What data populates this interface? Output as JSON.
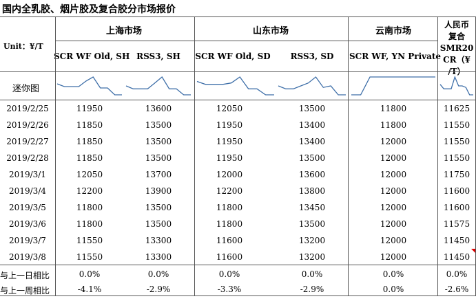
{
  "title": "国内全乳胶、烟片胶及复合胶分市场报价",
  "unit_label": "Unit：¥/T",
  "groups": {
    "shanghai": "上海市场",
    "shandong": "山东市场",
    "yunnan": "云南市场",
    "rmb_line1": "人民币",
    "rmb_line2": "复合"
  },
  "columns": {
    "sh_scr": "SCR WF Old, SH",
    "sh_rss": "RSS3, SH",
    "sd_scr": "SCR WF Old, SD",
    "sd_rss": "RSS3, SD",
    "yn_scr": "SCR WF, YN Private",
    "smr_line1": "SMR20",
    "smr_line2": "CR（¥",
    "smr_line3": "/T）"
  },
  "mini_chart_label": "迷你图",
  "rows": [
    {
      "date": "2019/2/25",
      "sh_scr": "11950",
      "sh_rss": "13600",
      "sd_scr": "12050",
      "sd_rss": "13500",
      "yn_scr": "11800",
      "smr": "11625"
    },
    {
      "date": "2019/2/26",
      "sh_scr": "11850",
      "sh_rss": "13500",
      "sd_scr": "11950",
      "sd_rss": "13400",
      "yn_scr": "11800",
      "smr": "11550"
    },
    {
      "date": "2019/2/27",
      "sh_scr": "11850",
      "sh_rss": "13500",
      "sd_scr": "11950",
      "sd_rss": "13400",
      "yn_scr": "12000",
      "smr": "11550"
    },
    {
      "date": "2019/2/28",
      "sh_scr": "11850",
      "sh_rss": "13500",
      "sd_scr": "11950",
      "sd_rss": "13500",
      "yn_scr": "12000",
      "smr": "11550"
    },
    {
      "date": "2019/3/1",
      "sh_scr": "12050",
      "sh_rss": "13700",
      "sd_scr": "12000",
      "sd_rss": "13600",
      "yn_scr": "12000",
      "smr": "11750"
    },
    {
      "date": "2019/3/4",
      "sh_scr": "12200",
      "sh_rss": "13900",
      "sd_scr": "12200",
      "sd_rss": "13800",
      "yn_scr": "12000",
      "smr": "11600"
    },
    {
      "date": "2019/3/5",
      "sh_scr": "11800",
      "sh_rss": "13500",
      "sd_scr": "11800",
      "sd_rss": "13450",
      "yn_scr": "12000",
      "smr": "11600"
    },
    {
      "date": "2019/3/6",
      "sh_scr": "11800",
      "sh_rss": "13500",
      "sd_scr": "11800",
      "sd_rss": "13500",
      "yn_scr": "12000",
      "smr": "11575"
    },
    {
      "date": "2019/3/7",
      "sh_scr": "11550",
      "sh_rss": "13300",
      "sd_scr": "11600",
      "sd_rss": "13200",
      "yn_scr": "12000",
      "smr": "11450"
    },
    {
      "date": "2019/3/8",
      "sh_scr": "11550",
      "sh_rss": "13300",
      "sd_scr": "11600",
      "sd_rss": "13200",
      "yn_scr": "12000",
      "smr": "11450"
    }
  ],
  "footer": [
    {
      "label": "与上一日相比",
      "sh_scr": "0.0%",
      "sh_rss": "0.0%",
      "sd_scr": "0.0%",
      "sd_rss": "0.0%",
      "yn_scr": "0.0%",
      "smr": "0.0%"
    },
    {
      "label": "与上一周相比",
      "sh_scr": "-4.1%",
      "sh_rss": "-2.9%",
      "sd_scr": "-3.3%",
      "sd_rss": "-2.9%",
      "yn_scr": "0.0%",
      "smr": "-2.6%"
    }
  ],
  "colors": {
    "sparkline": "#3d6ea8",
    "marker": "#e00000"
  }
}
